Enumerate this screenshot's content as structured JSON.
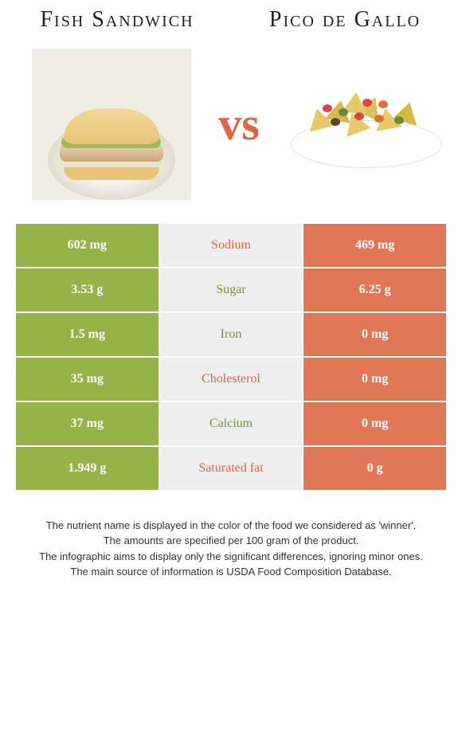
{
  "titles": {
    "left": "Fish Sandwich",
    "right": "Pico de Gallo"
  },
  "vs": "vs",
  "colors": {
    "left_col": "#96b347",
    "right_col": "#e07858",
    "mid_col": "#eeeeee",
    "green_text": "#7a9638",
    "orange_text": "#d96843"
  },
  "rows": [
    {
      "left": "602 mg",
      "label": "Sodium",
      "right": "469 mg",
      "winner": "orange"
    },
    {
      "left": "3.53 g",
      "label": "Sugar",
      "right": "6.25 g",
      "winner": "green"
    },
    {
      "left": "1.5 mg",
      "label": "Iron",
      "right": "0 mg",
      "winner": "green"
    },
    {
      "left": "35 mg",
      "label": "Cholesterol",
      "right": "0 mg",
      "winner": "orange"
    },
    {
      "left": "37 mg",
      "label": "Calcium",
      "right": "0 mg",
      "winner": "green"
    },
    {
      "left": "1.949 g",
      "label": "Saturated fat",
      "right": "0 g",
      "winner": "orange"
    }
  ],
  "footer": [
    "The nutrient name is displayed in the color of the food we considered as 'winner'.",
    "The amounts are specified per 100 gram of the product.",
    "The infographic aims to display only the significant differences, ignoring minor ones.",
    "The main source of information is USDA Food Composition Database."
  ]
}
